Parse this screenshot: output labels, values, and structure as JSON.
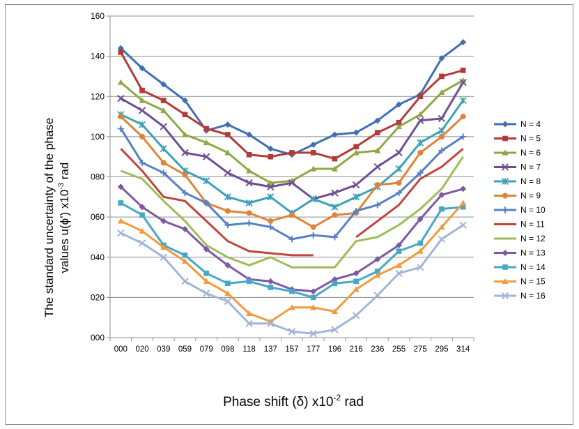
{
  "chart_data": {
    "type": "line",
    "xlabel_main": "Phase shift (δ)  x10",
    "xlabel_exp": "-2",
    "xlabel_unit": " rad",
    "ylabel_line1": "The standard uncertainty of  the  phase",
    "ylabel_line2_main": "values u(ϕ')  x10",
    "ylabel_line2_exp": "-3",
    "ylabel_line2_unit": " rad",
    "categories": [
      "000",
      "020",
      "039",
      "059",
      "079",
      "098",
      "118",
      "137",
      "157",
      "177",
      "196",
      "216",
      "236",
      "255",
      "275",
      "295",
      "314"
    ],
    "y_ticks": [
      "000",
      "020",
      "040",
      "060",
      "080",
      "100",
      "120",
      "140",
      "160"
    ],
    "ylim": [
      0,
      160
    ],
    "grid": true,
    "legend_position": "right",
    "series": [
      {
        "name": "N = 4",
        "color": "#3f6fb4",
        "marker": "diamond",
        "values": [
          144,
          134,
          126,
          118,
          103,
          106,
          101,
          94,
          91,
          96,
          101,
          102,
          108,
          116,
          121,
          139,
          147
        ]
      },
      {
        "name": "N = 5",
        "color": "#b33a36",
        "marker": "square",
        "values": [
          142,
          123,
          118,
          111,
          104,
          101,
          91,
          90,
          92,
          92,
          89,
          95,
          102,
          107,
          120,
          130,
          133
        ]
      },
      {
        "name": "N = 6",
        "color": "#8ea843",
        "marker": "triangle",
        "values": [
          127,
          118,
          113,
          101,
          97,
          92,
          83,
          77,
          78,
          84,
          84,
          92,
          93,
          105,
          111,
          122,
          128
        ]
      },
      {
        "name": "N = 7",
        "color": "#6e4e93",
        "marker": "x",
        "values": [
          119,
          113,
          105,
          92,
          90,
          82,
          77,
          75,
          77,
          69,
          72,
          76,
          85,
          92,
          108,
          109,
          127
        ]
      },
      {
        "name": "N = 8",
        "color": "#3ea1b7",
        "marker": "star",
        "values": [
          111,
          106,
          94,
          83,
          78,
          70,
          67,
          70,
          62,
          69,
          65,
          70,
          75,
          84,
          97,
          103,
          118
        ]
      },
      {
        "name": "N = 9",
        "color": "#de843a",
        "marker": "circle",
        "values": [
          110,
          100,
          87,
          81,
          67,
          63,
          62,
          58,
          61,
          55,
          61,
          62,
          76,
          77,
          92,
          100,
          110
        ]
      },
      {
        "name": "N = 10",
        "color": "#5680c4",
        "marker": "plus",
        "values": [
          104,
          87,
          82,
          72,
          67,
          56,
          57,
          55,
          49,
          51,
          50,
          63,
          66,
          72,
          82,
          93,
          100
        ]
      },
      {
        "name": "N = 11",
        "color": "#c2443f",
        "marker": "none",
        "values": [
          94,
          83,
          70,
          68,
          58,
          48,
          43,
          42,
          41,
          41,
          null,
          50,
          58,
          66,
          79,
          85,
          94
        ]
      },
      {
        "name": "N = 12",
        "color": "#9dbd57",
        "marker": "none",
        "values": [
          83,
          79,
          68,
          58,
          46,
          40,
          36,
          40,
          35,
          35,
          35,
          48,
          50,
          56,
          64,
          74,
          90
        ]
      },
      {
        "name": "N = 13",
        "color": "#7d59a3",
        "marker": "diamond",
        "values": [
          75,
          65,
          58,
          54,
          44,
          36,
          29,
          28,
          24,
          23,
          29,
          32,
          39,
          46,
          59,
          71,
          74
        ]
      },
      {
        "name": "N = 14",
        "color": "#46a7c8",
        "marker": "square",
        "values": [
          67,
          61,
          46,
          41,
          32,
          27,
          28,
          25,
          23,
          20,
          27,
          28,
          33,
          43,
          47,
          64,
          65
        ]
      },
      {
        "name": "N = 15",
        "color": "#f39a3c",
        "marker": "triangle",
        "values": [
          58,
          53,
          45,
          38,
          28,
          22,
          12,
          8,
          15,
          15,
          13,
          24,
          31,
          36,
          43,
          55,
          67
        ]
      },
      {
        "name": "N = 16",
        "color": "#a2b5d8",
        "marker": "x",
        "values": [
          52,
          47,
          40,
          28,
          22,
          18,
          7,
          7,
          3,
          2,
          4,
          11,
          21,
          32,
          35,
          49,
          56
        ]
      }
    ]
  }
}
